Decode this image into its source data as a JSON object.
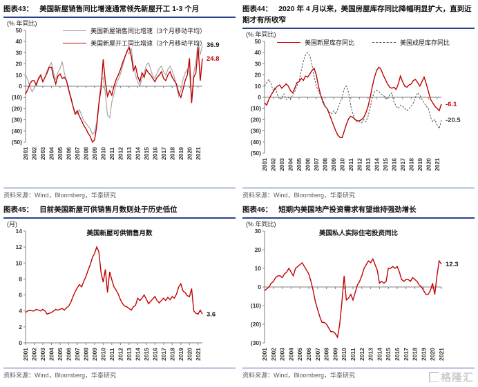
{
  "source_label": "资料来源：Wind，Bloomberg，华泰研究",
  "watermark": {
    "text": "格隆汇"
  },
  "colors": {
    "red": "#c00000",
    "gray": "#a6a6a6",
    "dark_dashed": "#4d4d4d",
    "title_rule": "#26418f",
    "source_rule": "#3a5ba9",
    "axis": "#7f7f7f"
  },
  "chart_data": [
    {
      "type": "line",
      "fig_label": "图表43：",
      "title": "美国新屋销售同比增速通常领先新屋开工 1-3 个月",
      "y_unit": "(% 年同比)",
      "legend_layout": "stacked",
      "legend": [
        {
          "label": "美国新屋销售同比增速（3个月移动平均）",
          "style": "gray-solid"
        },
        {
          "label": "美国新屋开工同比增速（3个月移动平均）",
          "style": "red-solid"
        }
      ],
      "y_min": -50,
      "y_max": 50,
      "y_ticks": [
        {
          "v": 50,
          "label": "50"
        },
        {
          "v": 40,
          "label": "40"
        },
        {
          "v": 30,
          "label": "30"
        },
        {
          "v": 20,
          "label": "20"
        },
        {
          "v": 10,
          "label": "10"
        },
        {
          "v": 0,
          "label": "0"
        },
        {
          "v": -10,
          "label": "(10)"
        },
        {
          "v": -20,
          "label": "(20)"
        },
        {
          "v": -30,
          "label": "(30)"
        },
        {
          "v": -40,
          "label": "(40)"
        },
        {
          "v": -50,
          "label": "(50)"
        }
      ],
      "x_ticks": [
        "2001",
        "2002",
        "2003",
        "2004",
        "2005",
        "2006",
        "2007",
        "2008",
        "2009",
        "2010",
        "2011",
        "2012",
        "2013",
        "2014",
        "2015",
        "2016",
        "2017",
        "2018",
        "2019",
        "2020",
        "2021"
      ],
      "points_per_year": 4,
      "series": [
        {
          "name": "美国新屋销售同比增速（3个月移动平均）",
          "color": "#a6a6a6",
          "width": 1.2,
          "values": [
            10,
            6,
            0,
            -5,
            -2,
            3,
            6,
            9,
            4,
            8,
            14,
            18,
            21,
            12,
            6,
            12,
            16,
            22,
            12,
            5,
            -4,
            -12,
            -18,
            -23,
            -25,
            -21,
            -26,
            -31,
            -33,
            -36,
            -38,
            -43,
            -41,
            -32,
            -14,
            4,
            8,
            -6,
            -26,
            -28,
            -14,
            -7,
            2,
            6,
            11,
            18,
            25,
            31,
            29,
            34,
            19,
            10,
            4,
            0,
            7,
            12,
            19,
            21,
            15,
            9,
            7,
            12,
            16,
            18,
            13,
            10,
            15,
            18,
            14,
            8,
            0,
            -9,
            -4,
            6,
            12,
            15,
            12,
            -12,
            12,
            22,
            40,
            28,
            36.9
          ]
        },
        {
          "name": "美国新屋开工同比增速（3个月移动平均）",
          "color": "#c00000",
          "width": 1.4,
          "values": [
            -7,
            -3,
            2,
            5,
            5,
            1,
            7,
            10,
            4,
            8,
            12,
            17,
            17,
            8,
            2,
            9,
            11,
            7,
            8,
            5,
            -3,
            -10,
            -18,
            -25,
            -22,
            -27,
            -31,
            -35,
            -38,
            -42,
            -45,
            -50,
            -48,
            -36,
            -16,
            -2,
            24,
            4,
            -9,
            -4,
            -8,
            0,
            6,
            10,
            15,
            21,
            26,
            31,
            35,
            27,
            14,
            18,
            9,
            4,
            12,
            8,
            15,
            12,
            10,
            7,
            4,
            8,
            10,
            13,
            7,
            5,
            10,
            13,
            8,
            5,
            2,
            -6,
            -10,
            -3,
            5,
            10,
            25,
            -15,
            8,
            12,
            35,
            5,
            24.8
          ]
        }
      ],
      "end_labels": [
        {
          "text": "36.9",
          "v": 36.9,
          "color": "#1a1a1a"
        },
        {
          "text": "24.8",
          "v": 24.8,
          "color": "#c00000"
        }
      ]
    },
    {
      "type": "line",
      "fig_label": "图表44：",
      "title": "2020 年 4 月以来，美国房屋库存同比降幅明显扩大，直到近期才有所收窄",
      "y_unit": "(% 年同比)",
      "legend_layout": "inline",
      "legend": [
        {
          "label": "美国新屋库存同比",
          "style": "red-solid"
        },
        {
          "label": "美国成屋库存同比",
          "style": "dark-dashed"
        }
      ],
      "y_min": -50,
      "y_max": 50,
      "y_ticks": [
        {
          "v": 50,
          "label": "50"
        },
        {
          "v": 40,
          "label": "40"
        },
        {
          "v": 30,
          "label": "30"
        },
        {
          "v": 20,
          "label": "20"
        },
        {
          "v": 10,
          "label": "10"
        },
        {
          "v": 0,
          "label": "0"
        },
        {
          "v": -10,
          "label": "(10)"
        },
        {
          "v": -20,
          "label": "(20)"
        },
        {
          "v": -30,
          "label": "(30)"
        },
        {
          "v": -40,
          "label": "(40)"
        },
        {
          "v": -50,
          "label": "(50)"
        }
      ],
      "x_ticks": [
        "2001",
        "2002",
        "2003",
        "2004",
        "2005",
        "2006",
        "2007",
        "2008",
        "2009",
        "2010",
        "2011",
        "2012",
        "2013",
        "2014",
        "2015",
        "2016",
        "2017",
        "2018",
        "2019",
        "2020",
        "2021"
      ],
      "points_per_year": 4,
      "series": [
        {
          "name": "美国新屋库存同比",
          "color": "#c00000",
          "width": 1.4,
          "values": [
            -5,
            -7,
            -2,
            2,
            5,
            8,
            10,
            11,
            8,
            10,
            12,
            10,
            6,
            4,
            8,
            13,
            14,
            17,
            15,
            19,
            18,
            21,
            24,
            26,
            20,
            10,
            2,
            -3,
            -8,
            -10,
            -15,
            -20,
            -25,
            -30,
            -34,
            -36,
            -36,
            -30,
            -24,
            -19,
            -17,
            -18,
            -20,
            -21,
            -21,
            -20,
            -18,
            -14,
            -8,
            0,
            10,
            18,
            24,
            27,
            25,
            20,
            16,
            12,
            9,
            8,
            9,
            7,
            12,
            19,
            14,
            10,
            9,
            11,
            12,
            15,
            16,
            13,
            10,
            14,
            18,
            12,
            5,
            -2,
            -5,
            -8,
            -10,
            -12,
            -6.1
          ]
        },
        {
          "name": "美国成屋库存同比",
          "color": "#4d4d4d",
          "width": 1,
          "dash": "2.5,2",
          "values": [
            10,
            13,
            16,
            12,
            6,
            9,
            2,
            -2,
            0,
            3,
            -2,
            0,
            -2,
            2,
            5,
            10,
            15,
            24,
            32,
            38,
            40,
            37,
            29,
            18,
            10,
            5,
            2,
            -5,
            -8,
            -10,
            -13,
            -15,
            -12,
            -15,
            -10,
            -5,
            0,
            8,
            10,
            4,
            -8,
            -15,
            -20,
            -22,
            -22,
            -23,
            -20,
            -22,
            -17,
            -9,
            0,
            5,
            6,
            5,
            3,
            2,
            0,
            -2,
            2,
            4,
            -4,
            -8,
            -10,
            -7,
            -8,
            -10,
            -12,
            -10,
            -8,
            -5,
            0,
            4,
            2,
            -2,
            -5,
            -8,
            -10,
            -18,
            -22,
            -20,
            -25,
            -28,
            -20.5
          ]
        }
      ],
      "end_labels": [
        {
          "text": "-6.1",
          "v": -6.1,
          "color": "#c00000"
        },
        {
          "text": "-20.5",
          "v": -20.5,
          "color": "#404040"
        }
      ]
    },
    {
      "type": "line",
      "fig_label": "图表45：",
      "title": "目前美国新屋可供销售月数则处于历史低位",
      "y_unit": "(月)",
      "inner_title": "美国新屋可供销售月数",
      "y_min": 0,
      "y_max": 14,
      "y_ticks": [
        {
          "v": 14,
          "label": "14"
        },
        {
          "v": 12,
          "label": "12"
        },
        {
          "v": 10,
          "label": "10"
        },
        {
          "v": 8,
          "label": "8"
        },
        {
          "v": 6,
          "label": "6"
        },
        {
          "v": 4,
          "label": "4"
        },
        {
          "v": 2,
          "label": "2"
        },
        {
          "v": 0,
          "label": "0"
        }
      ],
      "x_ticks": [
        "2001",
        "2002",
        "2003",
        "2004",
        "2005",
        "2006",
        "2007",
        "2008",
        "2009",
        "2010",
        "2011",
        "2012",
        "2013",
        "2014",
        "2015",
        "2016",
        "2017",
        "2018",
        "2019",
        "2020",
        "2021"
      ],
      "points_per_year": 4,
      "series": [
        {
          "name": "美国新屋可供销售月数",
          "color": "#c00000",
          "width": 1.4,
          "values": [
            3.8,
            4,
            4.1,
            4,
            4,
            4.2,
            4.1,
            4,
            4.2,
            4,
            3.6,
            3.7,
            3.8,
            4,
            4.2,
            4.1,
            4.2,
            4.3,
            4.1,
            4.4,
            4.6,
            5.1,
            5.8,
            6.4,
            6.9,
            7.3,
            7,
            7.7,
            8.3,
            9.1,
            9.8,
            10.7,
            11.2,
            12,
            11.4,
            8.8,
            7.6,
            9.2,
            6.3,
            8.9,
            7.9,
            7,
            6.6,
            6.1,
            5.4,
            4.9,
            4.6,
            4.5,
            4.3,
            4.1,
            4.5,
            4.7,
            5.6,
            5.3,
            5.6,
            6,
            5.5,
            4.9,
            5.2,
            5.5,
            5.8,
            5.3,
            5,
            5.3,
            5.6,
            5.3,
            5.7,
            5.4,
            5.8,
            5.6,
            6.1,
            7,
            7.4,
            6.5,
            6.3,
            5.9,
            5.8,
            6.8,
            4,
            3.7,
            3.6,
            4.1,
            3.6
          ]
        }
      ],
      "end_labels": [
        {
          "text": "3.6",
          "v": 3.6,
          "color": "#1a1a1a"
        }
      ]
    },
    {
      "type": "line",
      "fig_label": "图表46：",
      "title": "短期内美国地产投资需求有望维持强劲增长",
      "y_unit": "(% 年同比)",
      "inner_title": "美国私人实际住宅投资同比",
      "y_min": -30,
      "y_max": 30,
      "y_ticks": [
        {
          "v": 30,
          "label": "30"
        },
        {
          "v": 20,
          "label": "20"
        },
        {
          "v": 10,
          "label": "10"
        },
        {
          "v": 0,
          "label": "0"
        },
        {
          "v": -10,
          "label": "(10)"
        },
        {
          "v": -20,
          "label": "(20)"
        },
        {
          "v": -30,
          "label": "(30)"
        }
      ],
      "x_ticks": [
        "2001",
        "2002",
        "2003",
        "2004",
        "2005",
        "2006",
        "2007",
        "2008",
        "2009",
        "2010",
        "2011",
        "2012",
        "2013",
        "2014",
        "2015",
        "2016",
        "2017",
        "2018",
        "2019",
        "2020",
        "2021"
      ],
      "points_per_year": 4,
      "series": [
        {
          "name": "美国私人实际住宅投资同比",
          "color": "#c00000",
          "width": 1.4,
          "values": [
            -2,
            -1,
            0,
            2,
            3,
            5,
            6,
            6,
            5,
            7,
            8,
            10,
            8,
            6,
            10,
            11,
            12,
            13,
            11,
            9,
            7,
            3,
            -2,
            -8,
            -12,
            -16,
            -19,
            -19,
            -20,
            -22,
            -24,
            -24,
            -25,
            -27,
            -20,
            -8,
            6,
            -7,
            -6,
            -4,
            -7,
            -3,
            1,
            3,
            6,
            10,
            12,
            14,
            13,
            15,
            12,
            9,
            2,
            3,
            2,
            3,
            10,
            10,
            11,
            10,
            11,
            8,
            4,
            3,
            4,
            4,
            3,
            5,
            4,
            3,
            1,
            0,
            -2,
            -4,
            -4,
            -2,
            2,
            -4,
            6,
            14,
            12.3
          ]
        }
      ],
      "end_labels": [
        {
          "text": "12.3",
          "v": 12.3,
          "color": "#1a1a1a"
        }
      ]
    }
  ]
}
